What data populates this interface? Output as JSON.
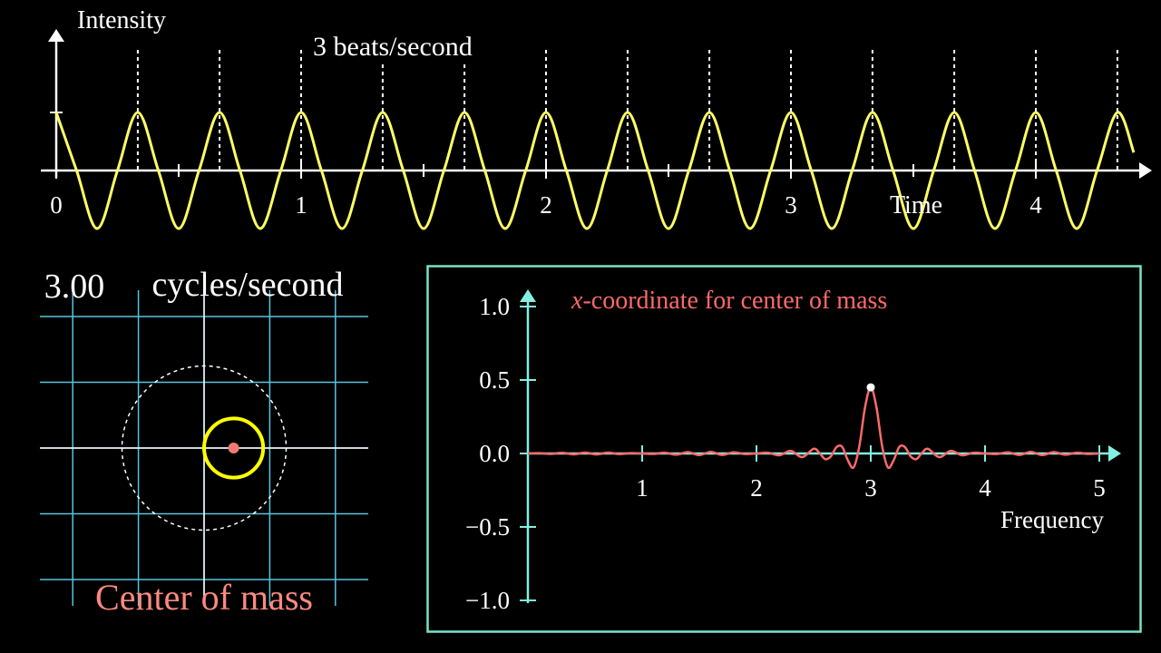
{
  "chart_data": [
    {
      "type": "line",
      "y_label": "Intensity",
      "x_label": "Time",
      "annotation": "3 beats/second",
      "color": "#ffff66",
      "x": [
        0,
        0.083,
        0.167,
        0.25,
        0.333,
        0.417,
        0.5,
        0.583,
        0.667,
        0.75,
        0.833,
        0.917,
        1,
        1.083,
        1.167,
        1.25,
        1.333,
        1.417,
        1.5,
        1.583,
        1.667,
        1.75,
        1.833,
        1.917,
        2,
        2.083,
        2.167,
        2.25,
        2.333,
        2.417,
        2.5,
        2.583,
        2.667,
        2.75,
        2.833,
        2.917,
        3,
        3.083,
        3.167,
        3.25,
        3.333,
        3.417,
        3.5,
        3.583,
        3.667,
        3.75,
        3.833,
        3.917,
        4,
        4.083,
        4.167,
        4.25,
        4.333,
        4.4
      ],
      "values": [
        1,
        0,
        -1,
        0,
        1,
        0,
        -1,
        0,
        1,
        0,
        -1,
        0,
        1,
        0,
        -1,
        0,
        1,
        0,
        -1,
        0,
        1,
        0,
        -1,
        0,
        1,
        0,
        -1,
        0,
        1,
        0,
        -1,
        0,
        1,
        0,
        -1,
        0,
        1,
        0,
        -1,
        0,
        1,
        0,
        -1,
        0,
        1,
        0,
        -1,
        0,
        1,
        0,
        -1,
        0,
        1,
        0.309
      ],
      "xlim": [
        0,
        4.4
      ],
      "ylim": [
        -1,
        1
      ],
      "xticks": [
        0,
        1,
        2,
        3,
        4
      ],
      "xminorticks": [
        0.5,
        1.5,
        2.5,
        3.5
      ],
      "ytick_marks": [
        1
      ],
      "beat_lines": [
        0.333,
        0.667,
        1,
        1.333,
        1.667,
        2,
        2.333,
        2.667,
        3,
        3.333,
        3.667,
        4,
        4.333
      ]
    },
    {
      "type": "winding",
      "frequency": {
        "value": 3,
        "label": "3.00"
      },
      "unit": "cycles/second",
      "label": "Center of mass",
      "xlim": [
        -2.5,
        2.5
      ],
      "ylim": [
        -2.4,
        2.4
      ],
      "grid_x": [
        -2,
        -1,
        0,
        1,
        2
      ],
      "grid_y": [
        -2,
        -1,
        0,
        1,
        2
      ],
      "grid_color": "#58c4dd",
      "reference_radius": 1.25,
      "winding": {
        "cx": 0.45,
        "cy": 0,
        "r": 0.45,
        "color": "#ffff00"
      },
      "center_of_mass": {
        "x": 0.45,
        "y": 0,
        "color": "#f47a72"
      }
    },
    {
      "type": "line",
      "title_variable": "x",
      "title": "-coordinate for center of mass",
      "x_label": "Frequency",
      "color": "#fc6a6a",
      "axis_color": "#83f0e0",
      "x": [
        0,
        0.1,
        0.2,
        0.3,
        0.4,
        0.5,
        0.6,
        0.7,
        0.8,
        0.9,
        1,
        1.1,
        1.2,
        1.3,
        1.4,
        1.5,
        1.6,
        1.7,
        1.8,
        1.9,
        2,
        2.1,
        2.2,
        2.3,
        2.4,
        2.5,
        2.55,
        2.6,
        2.65,
        2.7,
        2.75,
        2.8,
        2.85,
        2.9,
        2.95,
        3,
        3.05,
        3.1,
        3.15,
        3.2,
        3.25,
        3.3,
        3.35,
        3.4,
        3.45,
        3.5,
        3.6,
        3.7,
        3.8,
        3.9,
        4,
        4.1,
        4.2,
        4.3,
        4.4,
        4.5,
        4.6,
        4.7,
        4.8,
        4.9,
        5
      ],
      "values": [
        0,
        0.002,
        -0.003,
        0.005,
        -0.006,
        0.006,
        -0.006,
        0.006,
        -0.004,
        0.002,
        0,
        -0.003,
        0.005,
        -0.008,
        0.009,
        -0.011,
        0.011,
        -0.01,
        0.008,
        -0.004,
        0,
        0.005,
        -0.012,
        0.018,
        -0.025,
        0.032,
        0.005,
        -0.038,
        -0.021,
        0.043,
        0.045,
        -0.047,
        -0.095,
        0.049,
        0.314,
        0.45,
        0.314,
        0.049,
        -0.095,
        -0.047,
        0.045,
        0.043,
        -0.021,
        -0.038,
        0.005,
        0.032,
        -0.025,
        0.018,
        -0.012,
        0.005,
        0,
        -0.004,
        0.008,
        -0.01,
        0.011,
        -0.011,
        0.009,
        -0.008,
        0.005,
        -0.003,
        0
      ],
      "xlim": [
        0,
        5
      ],
      "ylim": [
        -1,
        1
      ],
      "xticks": [
        1,
        2,
        3,
        4,
        5
      ],
      "yticks": [
        {
          "value": 1,
          "label": "1.0"
        },
        {
          "value": 0.5,
          "label": "0.5"
        },
        {
          "value": 0,
          "label": "0.0"
        },
        {
          "value": -0.5,
          "label": "−0.5"
        },
        {
          "value": -1,
          "label": "−1.0"
        }
      ]
    }
  ]
}
